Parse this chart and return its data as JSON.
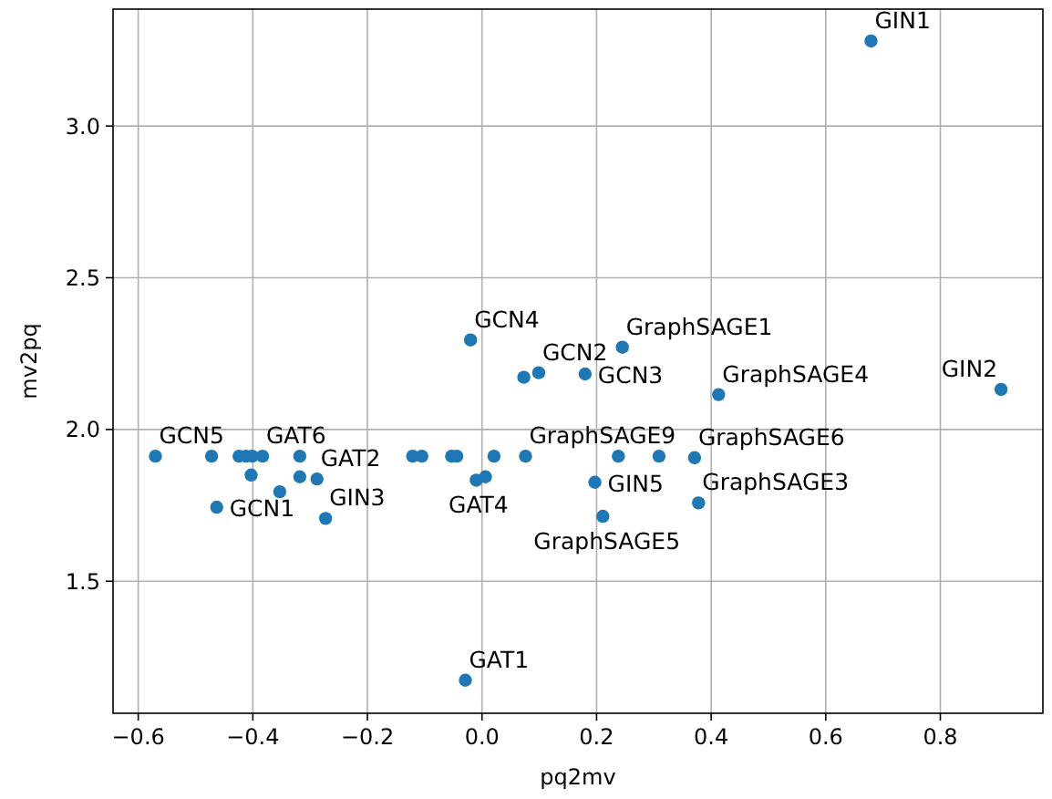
{
  "chart_data": {
    "type": "scatter",
    "xlabel": "pq2mv",
    "ylabel": "mv2pq",
    "x": [
      -0.57,
      -0.472,
      -0.463,
      -0.424,
      -0.412,
      -0.403,
      -0.401,
      -0.383,
      -0.353,
      -0.318,
      -0.318,
      -0.288,
      -0.273,
      -0.121,
      -0.105,
      -0.053,
      -0.044,
      -0.029,
      -0.02,
      -0.01,
      0.006,
      0.021,
      0.073,
      0.076,
      0.099,
      0.18,
      0.197,
      0.211,
      0.238,
      0.245,
      0.309,
      0.371,
      0.378,
      0.413,
      0.679,
      0.906
    ],
    "values": [
      1.912,
      1.912,
      1.744,
      1.912,
      1.912,
      1.85,
      1.912,
      1.912,
      1.795,
      1.912,
      1.844,
      1.837,
      1.707,
      1.912,
      1.912,
      1.912,
      1.912,
      1.174,
      2.295,
      1.833,
      1.844,
      1.912,
      2.172,
      1.912,
      2.187,
      2.183,
      1.826,
      1.714,
      1.912,
      2.271,
      1.912,
      1.907,
      1.758,
      2.115,
      3.28,
      2.132
    ],
    "color": "#1f77b4",
    "marker": "circle",
    "xlim": [
      -0.644,
      0.979
    ],
    "ylim": [
      1.065,
      3.385
    ],
    "xticks": [
      {
        "value": -0.6,
        "label": "−0.6"
      },
      {
        "value": -0.4,
        "label": "−0.4"
      },
      {
        "value": -0.2,
        "label": "−0.2"
      },
      {
        "value": 0,
        "label": "0.0"
      },
      {
        "value": 0.2,
        "label": "0.2"
      },
      {
        "value": 0.4,
        "label": "0.4"
      },
      {
        "value": 0.6,
        "label": "0.6"
      },
      {
        "value": 0.8,
        "label": "0.8"
      }
    ],
    "yticks": [
      {
        "value": 1.5,
        "label": "1.5"
      },
      {
        "value": 2,
        "label": "2.0"
      },
      {
        "value": 2.5,
        "label": "2.5"
      },
      {
        "value": 3,
        "label": "3.0"
      }
    ],
    "grid": true,
    "annotations": [
      {
        "text": "GIN1",
        "x": 0.679,
        "y": 3.28
      },
      {
        "text": "GIN2",
        "x": 0.906,
        "y": 2.132
      },
      {
        "text": "GCN4",
        "x": -0.02,
        "y": 2.295
      },
      {
        "text": "GraphSAGE1",
        "x": 0.245,
        "y": 2.271
      },
      {
        "text": "GCN2",
        "x": 0.099,
        "y": 2.187
      },
      {
        "text": "GCN3",
        "x": 0.18,
        "y": 2.183
      },
      {
        "text": "GraphSAGE4",
        "x": 0.413,
        "y": 2.115
      },
      {
        "text": "GraphSAGE9",
        "x": 0.076,
        "y": 1.912
      },
      {
        "text": "GCN5",
        "x": -0.57,
        "y": 1.912
      },
      {
        "text": "GAT6",
        "x": -0.383,
        "y": 1.912
      },
      {
        "text": "GAT2",
        "x": -0.288,
        "y": 1.837
      },
      {
        "text": "GraphSAGE6",
        "x": 0.371,
        "y": 1.907
      },
      {
        "text": "GAT4",
        "x": -0.01,
        "y": 1.833
      },
      {
        "text": "GIN5",
        "x": 0.197,
        "y": 1.826
      },
      {
        "text": "GraphSAGE3",
        "x": 0.378,
        "y": 1.758
      },
      {
        "text": "GCN1",
        "x": -0.463,
        "y": 1.744
      },
      {
        "text": "GIN3",
        "x": -0.273,
        "y": 1.707
      },
      {
        "text": "GraphSAGE5",
        "x": 0.211,
        "y": 1.714
      },
      {
        "text": "GAT1",
        "x": -0.029,
        "y": 1.174
      }
    ]
  }
}
